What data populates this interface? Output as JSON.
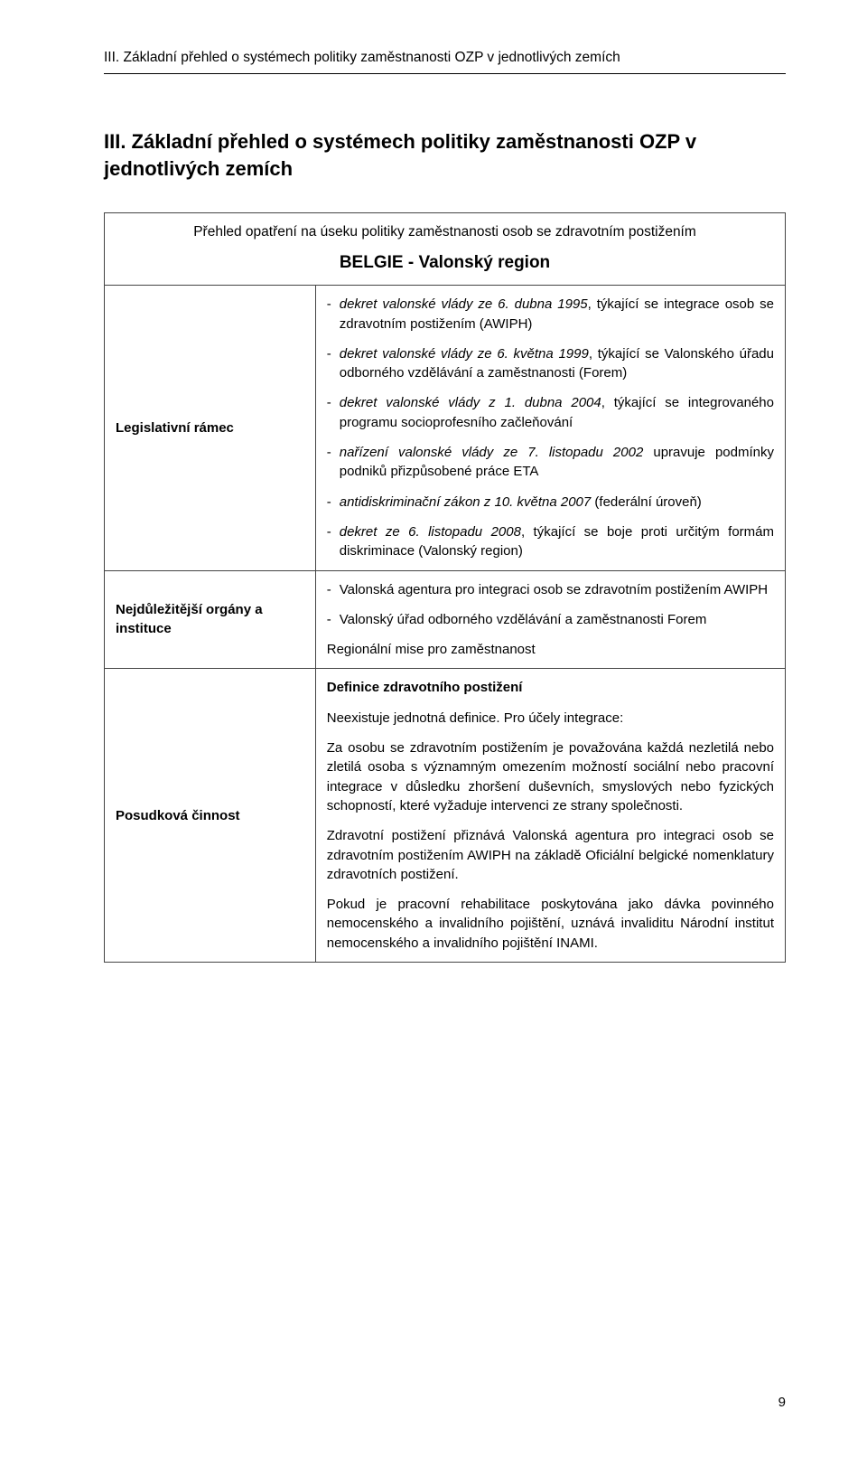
{
  "running_head": "III. Základní přehled o systémech politiky zaměstnanosti OZP v jednotlivých zemích",
  "section_title": "III. Základní přehled o systémech politiky zaměstna­nosti OZP v jednotlivých zemích",
  "table_header": {
    "line1": "Přehled opatření na úseku politiky zaměstnanosti osob se zdravotním postižením",
    "line2": "BELGIE - Valonský region"
  },
  "rows": {
    "legis": {
      "label": "Legislativní rámec",
      "items": [
        {
          "prefix": "dekret valonské vlády ze 6. dubna 1995",
          "rest": ", týkající se integrace osob se zdravotním postižením (AWIPH)"
        },
        {
          "prefix": "dekret valonské vlády ze 6. května 1999",
          "rest": ", týkající se Valonského úřadu odborného vzdělávání a zaměstnanosti (Forem)"
        },
        {
          "prefix": "dekret valonské vlády z 1. dubna 2004",
          "rest": ", týkající se integrovaného programu socioprofesního začleňování"
        },
        {
          "prefix": "nařízení valonské vlády ze 7. listopadu 2002",
          "rest": " upravuje podmínky podniků přizpůsobené práce ETA"
        },
        {
          "prefix": "antidiskriminační zákon z 10. května 2007",
          "rest": " (federální úroveň)"
        },
        {
          "prefix": "dekret ze 6. listopadu 2008",
          "rest": ", týkající se boje proti určitým formám diskriminace (Valonský region)"
        }
      ]
    },
    "orgs": {
      "label": "Nejdůležitější orgány a instituce",
      "items": [
        "Valonská agentura pro integraci osob se zdravotním postižením AWIPH",
        "Valonský úřad odborného vzdělávání a zaměstnanosti Forem"
      ],
      "trailing": "Regionální mise pro zaměstnanost"
    },
    "assess": {
      "label": "Posudková činnost",
      "heading": "Definice zdravotního postižení",
      "p1": "Neexistuje jednotná definice. Pro účely integrace:",
      "p2": "Za osobu se zdravotním postižením je považována každá nezletilá nebo zletilá osoba s významným omezením mož­ností sociální nebo pracovní integrace v důsledku zhoršení duševních, smyslových nebo fyzických schopností, které vyžaduje intervenci ze strany společnosti.",
      "p3": "Zdravotní postižení přiznává Valonská agentura pro inte­graci osob se zdravotním postižením AWIPH  na základě Oficiální belgické nomenklatury zdravotních postižení.",
      "p4": "Pokud je pracovní rehabilitace poskytována jako dávka povinného nemocenského a invalidního pojištění, uznává invaliditu Národní institut nemocenského a invalidního pojištění INAMI."
    }
  },
  "page_number": "9"
}
